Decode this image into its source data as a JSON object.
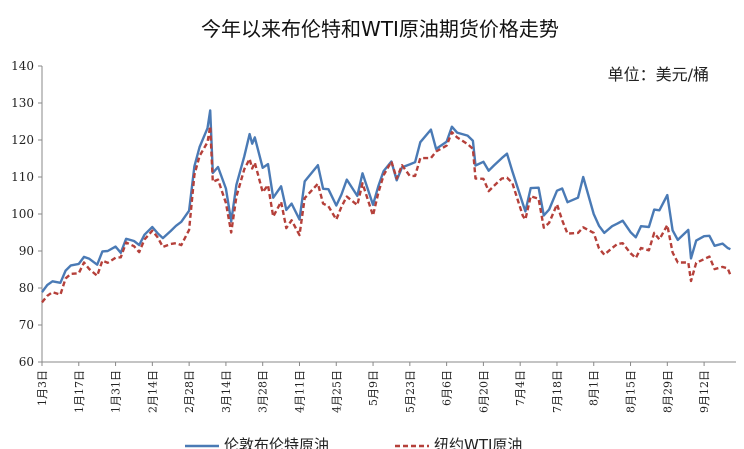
{
  "chart_data": {
    "type": "line",
    "title": "今年以来布伦特和WTI原油期货价格走势",
    "unit_label": "单位：美元/桶",
    "xlabel": "",
    "ylabel": "",
    "ylim": [
      60,
      140
    ],
    "y_ticks": [
      60,
      70,
      80,
      90,
      100,
      110,
      120,
      130,
      140
    ],
    "x_tick_labels": [
      "1月3日",
      "1月17日",
      "1月31日",
      "2月14日",
      "2月28日",
      "3月14日",
      "3月28日",
      "4月11日",
      "4月25日",
      "5月9日",
      "5月23日",
      "6月6日",
      "6月20日",
      "7月4日",
      "7月18日",
      "8月1日",
      "8月15日",
      "8月29日",
      "9月12日"
    ],
    "x_start_date": "2022-01-03",
    "x_end_date": "2022-09-23",
    "grid": false,
    "legend_position": "bottom",
    "series": [
      {
        "name": "伦敦布伦特原油",
        "color": "#4a7ab5",
        "style": "solid",
        "points": [
          [
            "2022-01-03",
            78.9
          ],
          [
            "2022-01-05",
            80.8
          ],
          [
            "2022-01-07",
            81.8
          ],
          [
            "2022-01-10",
            81.4
          ],
          [
            "2022-01-12",
            84.7
          ],
          [
            "2022-01-14",
            86.1
          ],
          [
            "2022-01-17",
            86.5
          ],
          [
            "2022-01-19",
            88.4
          ],
          [
            "2022-01-21",
            87.9
          ],
          [
            "2022-01-24",
            86.3
          ],
          [
            "2022-01-26",
            89.9
          ],
          [
            "2022-01-28",
            90.0
          ],
          [
            "2022-01-31",
            91.2
          ],
          [
            "2022-02-02",
            89.5
          ],
          [
            "2022-02-04",
            93.3
          ],
          [
            "2022-02-07",
            92.7
          ],
          [
            "2022-02-09",
            91.6
          ],
          [
            "2022-02-11",
            94.4
          ],
          [
            "2022-02-14",
            96.5
          ],
          [
            "2022-02-16",
            94.8
          ],
          [
            "2022-02-18",
            93.5
          ],
          [
            "2022-02-21",
            95.4
          ],
          [
            "2022-02-23",
            96.8
          ],
          [
            "2022-02-25",
            97.9
          ],
          [
            "2022-02-28",
            100.9
          ],
          [
            "2022-03-02",
            112.9
          ],
          [
            "2022-03-04",
            118.1
          ],
          [
            "2022-03-07",
            123.2
          ],
          [
            "2022-03-08",
            128.0
          ],
          [
            "2022-03-09",
            111.1
          ],
          [
            "2022-03-11",
            112.7
          ],
          [
            "2022-03-14",
            106.9
          ],
          [
            "2022-03-16",
            98.0
          ],
          [
            "2022-03-18",
            107.9
          ],
          [
            "2022-03-21",
            115.6
          ],
          [
            "2022-03-23",
            121.6
          ],
          [
            "2022-03-24",
            119.0
          ],
          [
            "2022-03-25",
            120.7
          ],
          [
            "2022-03-28",
            112.5
          ],
          [
            "2022-03-30",
            113.5
          ],
          [
            "2022-04-01",
            104.4
          ],
          [
            "2022-04-04",
            107.5
          ],
          [
            "2022-04-06",
            101.1
          ],
          [
            "2022-04-08",
            102.8
          ],
          [
            "2022-04-11",
            98.5
          ],
          [
            "2022-04-13",
            108.8
          ],
          [
            "2022-04-18",
            113.2
          ],
          [
            "2022-04-20",
            106.8
          ],
          [
            "2022-04-22",
            106.7
          ],
          [
            "2022-04-25",
            102.3
          ],
          [
            "2022-04-27",
            105.3
          ],
          [
            "2022-04-29",
            109.3
          ],
          [
            "2022-05-03",
            104.9
          ],
          [
            "2022-05-05",
            111.0
          ],
          [
            "2022-05-09",
            102.5
          ],
          [
            "2022-05-11",
            107.5
          ],
          [
            "2022-05-13",
            111.6
          ],
          [
            "2022-05-16",
            114.2
          ],
          [
            "2022-05-18",
            109.1
          ],
          [
            "2022-05-20",
            112.6
          ],
          [
            "2022-05-23",
            113.4
          ],
          [
            "2022-05-25",
            114.0
          ],
          [
            "2022-05-27",
            119.4
          ],
          [
            "2022-05-31",
            122.8
          ],
          [
            "2022-06-02",
            117.6
          ],
          [
            "2022-06-06",
            119.5
          ],
          [
            "2022-06-08",
            123.6
          ],
          [
            "2022-06-10",
            122.0
          ],
          [
            "2022-06-14",
            121.2
          ],
          [
            "2022-06-16",
            119.8
          ],
          [
            "2022-06-17",
            113.1
          ],
          [
            "2022-06-20",
            114.1
          ],
          [
            "2022-06-22",
            111.7
          ],
          [
            "2022-06-24",
            113.1
          ],
          [
            "2022-06-27",
            115.1
          ],
          [
            "2022-06-29",
            116.3
          ],
          [
            "2022-07-01",
            111.6
          ],
          [
            "2022-07-05",
            102.8
          ],
          [
            "2022-07-06",
            100.7
          ],
          [
            "2022-07-08",
            107.0
          ],
          [
            "2022-07-11",
            107.1
          ],
          [
            "2022-07-13",
            99.6
          ],
          [
            "2022-07-15",
            101.2
          ],
          [
            "2022-07-18",
            106.3
          ],
          [
            "2022-07-20",
            106.9
          ],
          [
            "2022-07-22",
            103.2
          ],
          [
            "2022-07-26",
            104.4
          ],
          [
            "2022-07-28",
            110.0
          ],
          [
            "2022-08-01",
            100.0
          ],
          [
            "2022-08-03",
            96.8
          ],
          [
            "2022-08-05",
            94.9
          ],
          [
            "2022-08-08",
            96.7
          ],
          [
            "2022-08-10",
            97.4
          ],
          [
            "2022-08-12",
            98.2
          ],
          [
            "2022-08-15",
            95.1
          ],
          [
            "2022-08-17",
            93.7
          ],
          [
            "2022-08-19",
            96.7
          ],
          [
            "2022-08-22",
            96.5
          ],
          [
            "2022-08-24",
            101.2
          ],
          [
            "2022-08-26",
            101.0
          ],
          [
            "2022-08-29",
            105.1
          ],
          [
            "2022-08-31",
            95.6
          ],
          [
            "2022-09-02",
            93.0
          ],
          [
            "2022-09-06",
            95.7
          ],
          [
            "2022-09-07",
            88.0
          ],
          [
            "2022-09-09",
            92.8
          ],
          [
            "2022-09-12",
            94.0
          ],
          [
            "2022-09-14",
            94.1
          ],
          [
            "2022-09-16",
            91.4
          ],
          [
            "2022-09-19",
            92.0
          ],
          [
            "2022-09-21",
            90.8
          ],
          [
            "2022-09-22",
            90.5
          ]
        ]
      },
      {
        "name": "纽约WTI原油",
        "color": "#b5403a",
        "style": "dashed",
        "points": [
          [
            "2022-01-03",
            76.1
          ],
          [
            "2022-01-05",
            77.9
          ],
          [
            "2022-01-07",
            78.9
          ],
          [
            "2022-01-10",
            78.2
          ],
          [
            "2022-01-12",
            82.6
          ],
          [
            "2022-01-14",
            83.8
          ],
          [
            "2022-01-17",
            84.0
          ],
          [
            "2022-01-19",
            86.9
          ],
          [
            "2022-01-21",
            85.1
          ],
          [
            "2022-01-24",
            83.3
          ],
          [
            "2022-01-26",
            87.4
          ],
          [
            "2022-01-28",
            86.8
          ],
          [
            "2022-01-31",
            88.2
          ],
          [
            "2022-02-02",
            88.3
          ],
          [
            "2022-02-04",
            92.3
          ],
          [
            "2022-02-07",
            91.3
          ],
          [
            "2022-02-09",
            89.7
          ],
          [
            "2022-02-11",
            93.1
          ],
          [
            "2022-02-14",
            95.5
          ],
          [
            "2022-02-16",
            93.7
          ],
          [
            "2022-02-18",
            91.1
          ],
          [
            "2022-02-21",
            91.9
          ],
          [
            "2022-02-23",
            92.1
          ],
          [
            "2022-02-25",
            91.6
          ],
          [
            "2022-02-28",
            95.7
          ],
          [
            "2022-03-02",
            110.6
          ],
          [
            "2022-03-04",
            115.7
          ],
          [
            "2022-03-07",
            119.4
          ],
          [
            "2022-03-08",
            123.7
          ],
          [
            "2022-03-09",
            108.7
          ],
          [
            "2022-03-11",
            109.3
          ],
          [
            "2022-03-14",
            103.0
          ],
          [
            "2022-03-16",
            95.0
          ],
          [
            "2022-03-18",
            104.7
          ],
          [
            "2022-03-21",
            112.1
          ],
          [
            "2022-03-23",
            114.9
          ],
          [
            "2022-03-24",
            112.3
          ],
          [
            "2022-03-25",
            113.9
          ],
          [
            "2022-03-28",
            105.9
          ],
          [
            "2022-03-30",
            107.8
          ],
          [
            "2022-04-01",
            99.3
          ],
          [
            "2022-04-04",
            103.3
          ],
          [
            "2022-04-06",
            96.2
          ],
          [
            "2022-04-08",
            98.3
          ],
          [
            "2022-04-11",
            94.3
          ],
          [
            "2022-04-13",
            104.3
          ],
          [
            "2022-04-18",
            108.2
          ],
          [
            "2022-04-20",
            102.8
          ],
          [
            "2022-04-22",
            102.1
          ],
          [
            "2022-04-25",
            98.5
          ],
          [
            "2022-04-27",
            102.0
          ],
          [
            "2022-04-29",
            104.7
          ],
          [
            "2022-05-03",
            102.4
          ],
          [
            "2022-05-05",
            108.3
          ],
          [
            "2022-05-09",
            99.6
          ],
          [
            "2022-05-11",
            105.7
          ],
          [
            "2022-05-13",
            110.5
          ],
          [
            "2022-05-16",
            114.2
          ],
          [
            "2022-05-18",
            109.6
          ],
          [
            "2022-05-20",
            113.2
          ],
          [
            "2022-05-23",
            110.3
          ],
          [
            "2022-05-25",
            110.3
          ],
          [
            "2022-05-27",
            115.1
          ],
          [
            "2022-05-31",
            115.1
          ],
          [
            "2022-06-02",
            116.9
          ],
          [
            "2022-06-06",
            118.5
          ],
          [
            "2022-06-08",
            122.1
          ],
          [
            "2022-06-10",
            120.7
          ],
          [
            "2022-06-14",
            118.9
          ],
          [
            "2022-06-16",
            117.6
          ],
          [
            "2022-06-17",
            109.6
          ],
          [
            "2022-06-20",
            109.5
          ],
          [
            "2022-06-22",
            106.2
          ],
          [
            "2022-06-24",
            107.6
          ],
          [
            "2022-06-27",
            109.6
          ],
          [
            "2022-06-29",
            109.8
          ],
          [
            "2022-07-01",
            108.4
          ],
          [
            "2022-07-05",
            99.5
          ],
          [
            "2022-07-06",
            98.5
          ],
          [
            "2022-07-08",
            104.8
          ],
          [
            "2022-07-11",
            104.1
          ],
          [
            "2022-07-13",
            96.3
          ],
          [
            "2022-07-15",
            97.6
          ],
          [
            "2022-07-18",
            102.6
          ],
          [
            "2022-07-20",
            98.3
          ],
          [
            "2022-07-22",
            94.7
          ],
          [
            "2022-07-26",
            94.9
          ],
          [
            "2022-07-28",
            96.4
          ],
          [
            "2022-08-01",
            94.9
          ],
          [
            "2022-08-03",
            90.7
          ],
          [
            "2022-08-05",
            89.0
          ],
          [
            "2022-08-08",
            90.8
          ],
          [
            "2022-08-10",
            91.9
          ],
          [
            "2022-08-12",
            92.1
          ],
          [
            "2022-08-15",
            89.4
          ],
          [
            "2022-08-17",
            88.1
          ],
          [
            "2022-08-19",
            90.8
          ],
          [
            "2022-08-22",
            90.2
          ],
          [
            "2022-08-24",
            94.9
          ],
          [
            "2022-08-26",
            93.1
          ],
          [
            "2022-08-29",
            97.0
          ],
          [
            "2022-08-31",
            89.6
          ],
          [
            "2022-09-02",
            86.9
          ],
          [
            "2022-09-06",
            86.9
          ],
          [
            "2022-09-07",
            81.9
          ],
          [
            "2022-09-09",
            86.8
          ],
          [
            "2022-09-12",
            87.8
          ],
          [
            "2022-09-14",
            88.5
          ],
          [
            "2022-09-16",
            85.1
          ],
          [
            "2022-09-19",
            85.7
          ],
          [
            "2022-09-21",
            85.3
          ],
          [
            "2022-09-22",
            83.5
          ]
        ]
      }
    ]
  }
}
